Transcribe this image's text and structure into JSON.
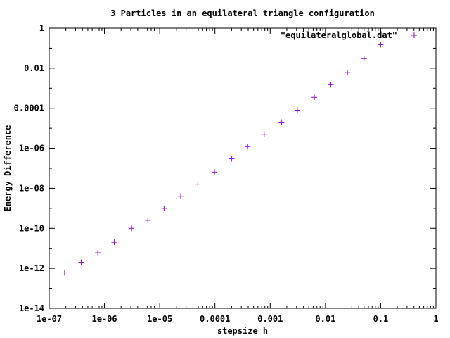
{
  "chart_data": {
    "type": "scatter",
    "title": "3 Particles in an equilateral triangle configuration",
    "xlabel": "stepsize h",
    "ylabel": "Energy Difference",
    "x_scale": "log",
    "y_scale": "log",
    "xlim": [
      1e-07,
      1
    ],
    "ylim": [
      1e-14,
      1
    ],
    "x_tick_labels": [
      "1e-07",
      "1e-06",
      "1e-05",
      "0.0001",
      "0.001",
      "0.01",
      "0.1",
      "1"
    ],
    "y_tick_labels": [
      "1e-14",
      "1e-12",
      "1e-10",
      "1e-08",
      "1e-06",
      "0.0001",
      "0.01",
      "1"
    ],
    "grid": false,
    "legend_position": "top-right",
    "series": [
      {
        "name": "\"equilateralglobal.dat\"",
        "color": "#9400d3",
        "marker": "plus",
        "x": [
          1.9e-07,
          3.8e-07,
          7.6e-07,
          1.5e-06,
          3.1e-06,
          6.1e-06,
          1.2e-05,
          2.4e-05,
          4.9e-05,
          9.8e-05,
          0.0002,
          0.00039,
          0.00078,
          0.0016,
          0.0031,
          0.0063,
          0.0125,
          0.025,
          0.05,
          0.1
        ],
        "y": [
          6e-13,
          2e-12,
          6e-12,
          2e-11,
          1e-10,
          2.5e-10,
          1e-09,
          4e-09,
          1.6e-08,
          6.5e-08,
          3e-07,
          1.2e-06,
          5e-06,
          2e-05,
          8e-05,
          0.00035,
          0.0015,
          0.006,
          0.03,
          0.15
        ]
      }
    ]
  }
}
